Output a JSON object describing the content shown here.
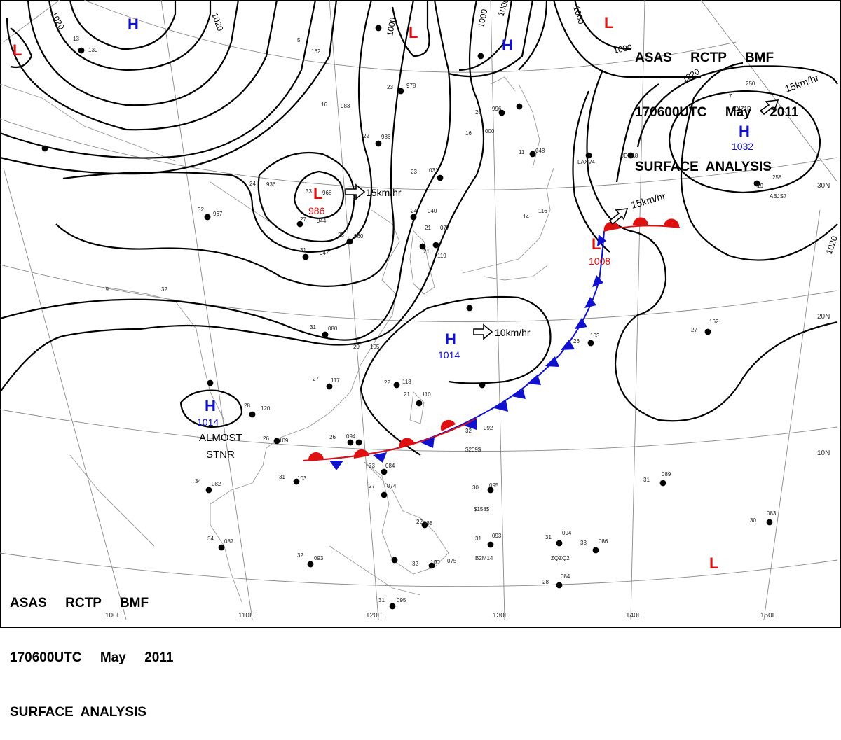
{
  "header": {
    "line1": "ASAS     RCTP     BMF",
    "line2": "170600UTC     May     2011",
    "line3": "SURFACE  ANALYSIS"
  },
  "colors": {
    "high": "#1010d0",
    "low": "#e01010",
    "warm_front": "#e01010",
    "cold_front": "#1010d0",
    "isobar": "#000000",
    "grid": "#888888",
    "coast": "#999999"
  },
  "longitude_labels": [
    "100E",
    "110E",
    "120E",
    "130E",
    "140E",
    "150E"
  ],
  "latitude_labels": [
    "30N",
    "20N",
    "10N"
  ],
  "isobar_labels": [
    "1020",
    "1020",
    "1000",
    "1000",
    "1000",
    "1000",
    "1020",
    "1000",
    "1020"
  ],
  "pressure_systems": [
    {
      "id": "low-nw",
      "type": "L",
      "value": ""
    },
    {
      "id": "high-n",
      "type": "H",
      "value": ""
    },
    {
      "id": "low-n",
      "type": "L",
      "value": ""
    },
    {
      "id": "high-ne",
      "type": "H",
      "value": ""
    },
    {
      "id": "low-far-ne",
      "type": "L",
      "value": ""
    },
    {
      "id": "high-pacific",
      "type": "H",
      "value": "1032"
    },
    {
      "id": "low-mongolia",
      "type": "L",
      "value": "986"
    },
    {
      "id": "low-japan",
      "type": "L",
      "value": "1008"
    },
    {
      "id": "high-taiwan",
      "type": "H",
      "value": "1014"
    },
    {
      "id": "high-indochina",
      "type": "H",
      "value": "1014"
    },
    {
      "id": "low-se",
      "type": "L",
      "value": ""
    }
  ],
  "motion_labels": {
    "low_mongolia": "15km/hr",
    "high_pacific": "15km/hr",
    "low_japan": "15km/hr",
    "high_taiwan": "10km/hr"
  },
  "stationary_note": [
    "ALMOST",
    "STNR"
  ],
  "station_plots": [
    {
      "t": "13",
      "p": "139"
    },
    {
      "t": "5",
      "p": "162"
    },
    {
      "t": "23",
      "p": "978"
    },
    {
      "t": "16",
      "p": "983"
    },
    {
      "t": "22",
      "p": "986"
    },
    {
      "t": "16",
      "p": "000"
    },
    {
      "t": "20",
      "p": "996"
    },
    {
      "t": "23",
      "p": "031"
    },
    {
      "t": "24",
      "p": "936"
    },
    {
      "t": "33",
      "p": "968"
    },
    {
      "t": "32",
      "p": "967"
    },
    {
      "t": "27",
      "p": "944"
    },
    {
      "t": "31",
      "p": "947"
    },
    {
      "t": "25",
      "p": "960"
    },
    {
      "t": "24",
      "p": "040"
    },
    {
      "t": "21",
      "p": "077"
    },
    {
      "t": "21",
      "p": "119"
    },
    {
      "t": "31",
      "p": "080"
    },
    {
      "t": "29",
      "p": "105"
    },
    {
      "t": "27",
      "p": "117"
    },
    {
      "t": "22",
      "p": "118"
    },
    {
      "t": "26",
      "p": "094"
    },
    {
      "t": "28",
      "p": "120"
    },
    {
      "t": "26",
      "p": "109"
    },
    {
      "t": "31",
      "p": "103"
    },
    {
      "t": "34",
      "p": "082"
    },
    {
      "t": "33",
      "p": "084"
    },
    {
      "t": "27",
      "p": "074"
    },
    {
      "t": "30",
      "p": "095"
    },
    {
      "t": "32",
      "p": "092"
    },
    {
      "t": "26",
      "p": "103"
    },
    {
      "t": "27",
      "p": "162"
    },
    {
      "t": "31",
      "p": "089"
    },
    {
      "t": "31",
      "p": "093"
    },
    {
      "t": "31",
      "p": "094"
    },
    {
      "t": "33",
      "p": "086"
    },
    {
      "t": "28",
      "p": "084"
    },
    {
      "t": "32",
      "p": "100"
    },
    {
      "t": "34",
      "p": "087"
    },
    {
      "t": "32",
      "p": "093"
    },
    {
      "t": "30",
      "p": "083"
    },
    {
      "t": "31",
      "p": "095"
    },
    {
      "t": "19",
      "p": "258"
    },
    {
      "t": "11",
      "p": "048"
    },
    {
      "t": "14",
      "p": "116"
    },
    {
      "t": "7",
      "p": "250"
    },
    {
      "t": "19",
      "p": "32"
    },
    {
      "t": "22",
      "p": "088"
    },
    {
      "t": "31",
      "p": "075"
    },
    {
      "t": "21",
      "p": "110"
    }
  ],
  "station_ids": [
    "ZQZQ2",
    "B2M14",
    "$158$",
    "$209$",
    "ABJS7",
    "JDVA8",
    "LAXV4",
    "ZNZ1P"
  ]
}
